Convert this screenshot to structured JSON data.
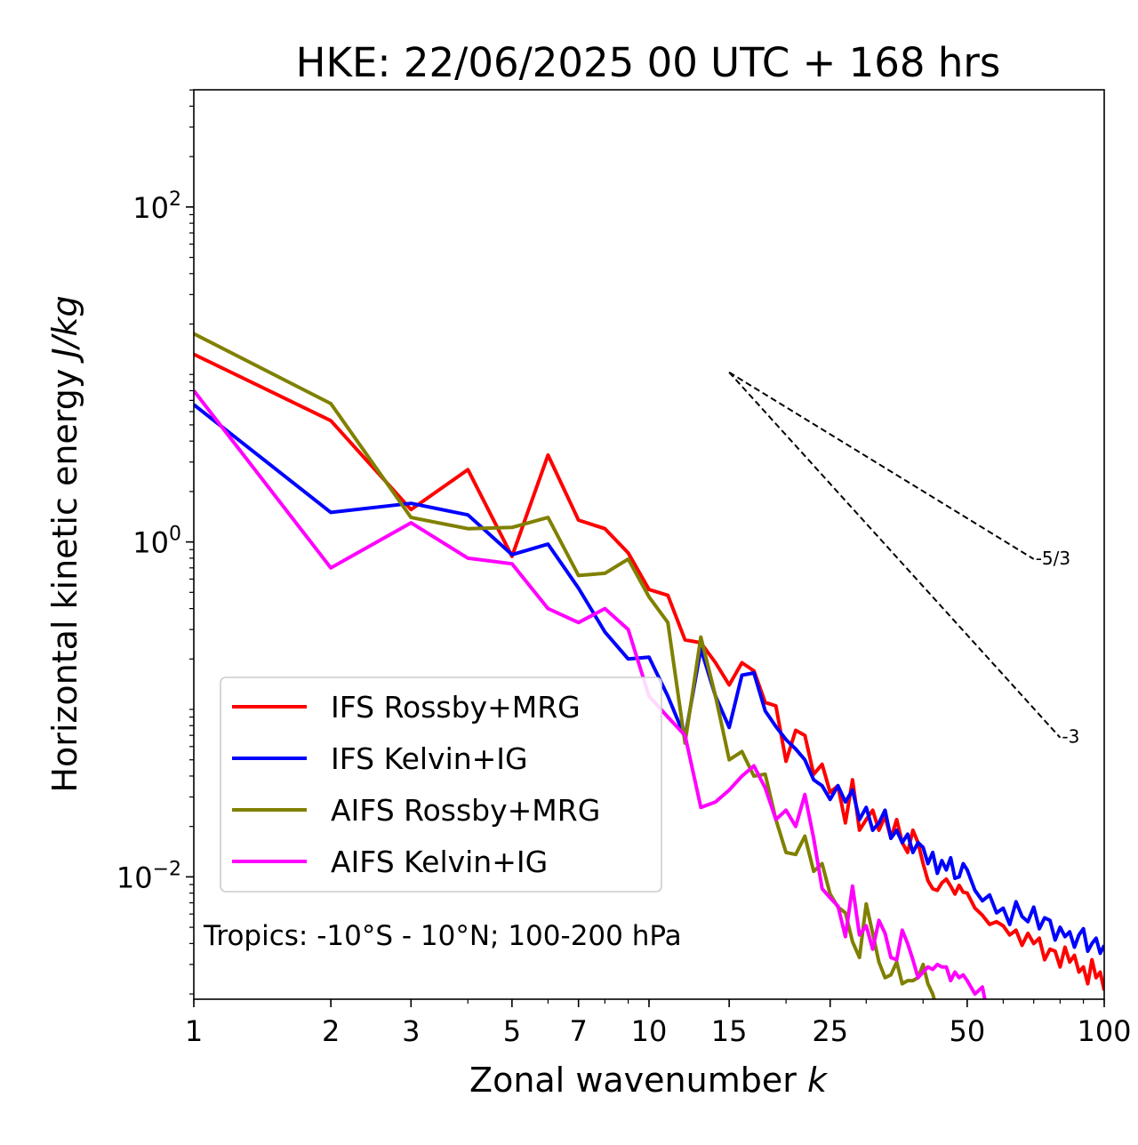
{
  "chart_data": {
    "type": "line",
    "title": "HKE: 22/06/2025 00 UTC + 168 hrs",
    "xlabel_text": "Zonal wavenumber ",
    "xlabel_var": "k",
    "ylabel_text": "Horizontal kinetic energy ",
    "ylabel_unit": "J/kg",
    "x_scale": "log",
    "y_scale": "log",
    "xlim": [
      1,
      100
    ],
    "ylim": [
      0.00186,
      501
    ],
    "x_ticks": [
      1,
      2,
      3,
      5,
      7,
      10,
      15,
      25,
      50,
      100
    ],
    "x_tick_labels": [
      "1",
      "2",
      "3",
      "5",
      "7",
      "10",
      "15",
      "25",
      "50",
      "100"
    ],
    "y_ticks": [
      {
        "value": 100,
        "base": "10",
        "exp": "2"
      },
      {
        "value": 1,
        "base": "10",
        "exp": "0"
      },
      {
        "value": 0.01,
        "base": "10",
        "exp": "−2"
      }
    ],
    "grid": false,
    "legend_position": "lower-left",
    "annotation": "Tropics: -10°S - 10°N; 100-200 hPa",
    "reference_lines": [
      {
        "label": "-5/3",
        "slope": -1.6667,
        "x_start": 15,
        "x_end": 70,
        "y_start": 10.3
      },
      {
        "label": "-3",
        "slope": -3,
        "x_start": 15,
        "x_end": 80,
        "y_start": 10.3
      }
    ],
    "series": [
      {
        "name": "IFS Rossby+MRG",
        "color": "#ff0000",
        "x": [
          1,
          2,
          3,
          4,
          5,
          6,
          7,
          8,
          9,
          10,
          11,
          12,
          13,
          14,
          15,
          16,
          17,
          18,
          19,
          20,
          21,
          22,
          23,
          24,
          25,
          26,
          27,
          28,
          29,
          30,
          31,
          32,
          33,
          34,
          35,
          36,
          37,
          38,
          39,
          40,
          41,
          42,
          43,
          44,
          45,
          46,
          47,
          48,
          49,
          50,
          52,
          54,
          56,
          58,
          60,
          62,
          64,
          66,
          68,
          70,
          72,
          74,
          76,
          78,
          80,
          82,
          84,
          86,
          88,
          90,
          92,
          94,
          96,
          98,
          100
        ],
        "y": [
          13.2,
          5.3,
          1.56,
          2.7,
          0.82,
          3.3,
          1.35,
          1.2,
          0.86,
          0.52,
          0.48,
          0.26,
          0.25,
          0.19,
          0.14,
          0.19,
          0.17,
          0.11,
          0.105,
          0.049,
          0.075,
          0.07,
          0.041,
          0.047,
          0.032,
          0.035,
          0.021,
          0.038,
          0.019,
          0.022,
          0.025,
          0.019,
          0.023,
          0.017,
          0.022,
          0.016,
          0.014,
          0.019,
          0.016,
          0.012,
          0.0095,
          0.0085,
          0.0083,
          0.0092,
          0.0097,
          0.0088,
          0.0079,
          0.0089,
          0.0081,
          0.008,
          0.0065,
          0.0059,
          0.0052,
          0.0054,
          0.0051,
          0.0045,
          0.0048,
          0.0039,
          0.0046,
          0.004,
          0.0043,
          0.0032,
          0.0037,
          0.0036,
          0.0029,
          0.0038,
          0.0031,
          0.0034,
          0.0027,
          0.0029,
          0.0023,
          0.0032,
          0.0025,
          0.0027,
          0.0021
        ]
      },
      {
        "name": "IFS Kelvin+IG",
        "color": "#0000ff",
        "x": [
          1,
          2,
          3,
          4,
          5,
          6,
          7,
          8,
          9,
          10,
          11,
          12,
          13,
          14,
          15,
          16,
          17,
          18,
          19,
          20,
          21,
          22,
          23,
          24,
          25,
          26,
          27,
          28,
          29,
          30,
          31,
          32,
          33,
          34,
          35,
          36,
          37,
          38,
          39,
          40,
          41,
          42,
          43,
          44,
          45,
          46,
          47,
          48,
          49,
          50,
          52,
          54,
          56,
          58,
          60,
          62,
          64,
          66,
          68,
          70,
          72,
          74,
          76,
          78,
          80,
          82,
          84,
          86,
          88,
          90,
          92,
          94,
          96,
          98,
          100
        ],
        "y": [
          6.6,
          1.5,
          1.7,
          1.45,
          0.84,
          0.97,
          0.53,
          0.29,
          0.2,
          0.205,
          0.12,
          0.068,
          0.23,
          0.12,
          0.078,
          0.16,
          0.165,
          0.098,
          0.079,
          0.066,
          0.058,
          0.05,
          0.038,
          0.035,
          0.029,
          0.035,
          0.028,
          0.033,
          0.022,
          0.026,
          0.019,
          0.021,
          0.025,
          0.017,
          0.019,
          0.016,
          0.018,
          0.014,
          0.016,
          0.015,
          0.012,
          0.014,
          0.0105,
          0.0125,
          0.011,
          0.013,
          0.0098,
          0.01,
          0.012,
          0.011,
          0.0083,
          0.0072,
          0.0078,
          0.0061,
          0.0065,
          0.0052,
          0.0071,
          0.0058,
          0.0054,
          0.0066,
          0.0049,
          0.0057,
          0.0055,
          0.0042,
          0.005,
          0.0044,
          0.0047,
          0.0038,
          0.0045,
          0.0049,
          0.0036,
          0.004,
          0.0043,
          0.0035,
          0.0039
        ]
      },
      {
        "name": "AIFS Rossby+MRG",
        "color": "#808000",
        "x": [
          1,
          2,
          3,
          4,
          5,
          6,
          7,
          8,
          9,
          10,
          11,
          12,
          13,
          14,
          15,
          16,
          17,
          18,
          19,
          20,
          21,
          22,
          23,
          24,
          25,
          26,
          27,
          28,
          29,
          30,
          31,
          32,
          33,
          34,
          35,
          36,
          37,
          38,
          39,
          40,
          41,
          42,
          43,
          44
        ],
        "y": [
          17.5,
          6.7,
          1.4,
          1.2,
          1.22,
          1.4,
          0.63,
          0.65,
          0.79,
          0.47,
          0.33,
          0.063,
          0.27,
          0.12,
          0.05,
          0.056,
          0.04,
          0.041,
          0.022,
          0.014,
          0.0136,
          0.0175,
          0.0108,
          0.012,
          0.0079,
          0.0066,
          0.0061,
          0.0041,
          0.0033,
          0.0069,
          0.0046,
          0.0031,
          0.0025,
          0.0026,
          0.0031,
          0.0023,
          0.0024,
          0.0024,
          0.0025,
          0.003,
          0.0023,
          0.002,
          0.0016,
          0.0011
        ]
      },
      {
        "name": "AIFS Kelvin+IG",
        "color": "#ff00ff",
        "x": [
          1,
          2,
          3,
          4,
          5,
          6,
          7,
          8,
          9,
          10,
          11,
          12,
          13,
          14,
          15,
          16,
          17,
          18,
          19,
          20,
          21,
          22,
          23,
          24,
          25,
          26,
          27,
          28,
          29,
          30,
          31,
          32,
          33,
          34,
          35,
          36,
          37,
          38,
          39,
          40,
          41,
          42,
          43,
          44,
          45,
          46,
          47,
          48,
          49,
          50,
          52,
          54,
          55
        ],
        "y": [
          8.0,
          0.7,
          1.3,
          0.8,
          0.74,
          0.4,
          0.33,
          0.4,
          0.3,
          0.12,
          0.09,
          0.07,
          0.026,
          0.028,
          0.033,
          0.04,
          0.046,
          0.034,
          0.022,
          0.025,
          0.02,
          0.031,
          0.017,
          0.0085,
          0.0075,
          0.0067,
          0.0044,
          0.0088,
          0.0045,
          0.0051,
          0.0037,
          0.0055,
          0.0046,
          0.0033,
          0.0032,
          0.0048,
          0.004,
          0.0032,
          0.0025,
          0.0027,
          0.0029,
          0.0028,
          0.003,
          0.0029,
          0.0029,
          0.0024,
          0.0027,
          0.0025,
          0.0026,
          0.0024,
          0.002,
          0.0022,
          0.0017
        ]
      }
    ]
  }
}
